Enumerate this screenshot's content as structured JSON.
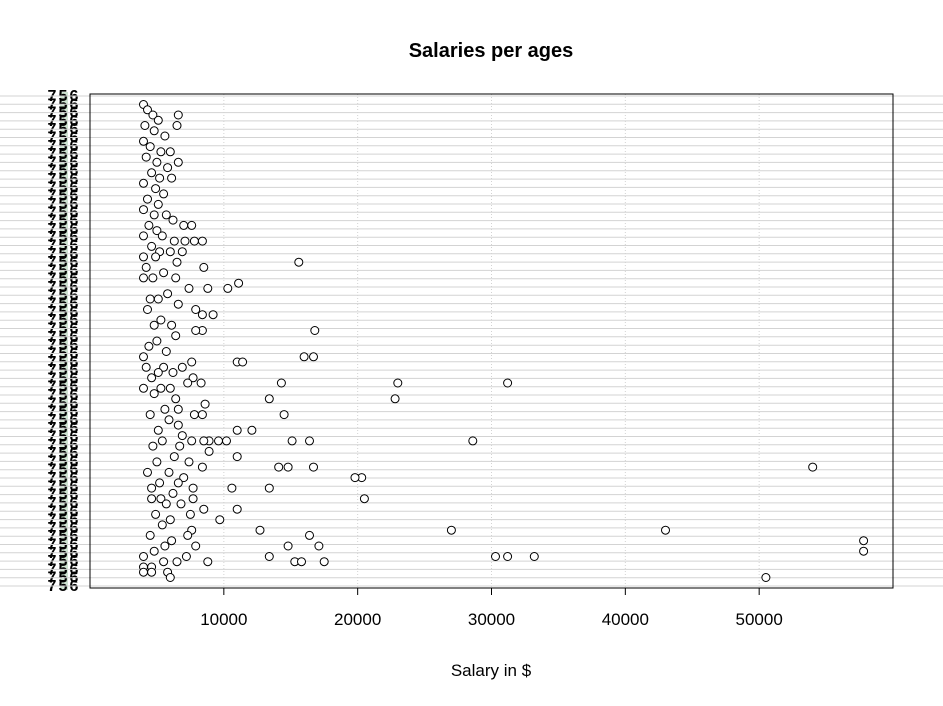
{
  "chart_data": {
    "type": "scatter",
    "title": "Salaries per ages",
    "xlabel": "Salary in $",
    "ylabel": "",
    "xlim": [
      0,
      60000
    ],
    "x_ticks": [
      10000,
      20000,
      30000,
      40000,
      50000
    ],
    "x_tick_labels": [
      "10000",
      "20000",
      "30000",
      "40000",
      "50000"
    ],
    "ylim": [
      18,
      65
    ],
    "y_levels": 60,
    "y_tick_labels_overplotted": [
      "7",
      "5",
      "6"
    ],
    "grid": true,
    "grid_color": "#d3d3d3",
    "point_fill": "#ffffff",
    "point_stroke": "#000000",
    "highlight_band_color": "#cfe3d2",
    "series": [
      {
        "points": [
          {
            "x": 4000,
            "y": 64
          },
          {
            "x": 4300,
            "y": 63.5
          },
          {
            "x": 4700,
            "y": 63
          },
          {
            "x": 5100,
            "y": 62.5
          },
          {
            "x": 6600,
            "y": 63
          },
          {
            "x": 4100,
            "y": 62
          },
          {
            "x": 4800,
            "y": 61.5
          },
          {
            "x": 5600,
            "y": 61
          },
          {
            "x": 6500,
            "y": 62
          },
          {
            "x": 4000,
            "y": 60.5
          },
          {
            "x": 4500,
            "y": 60
          },
          {
            "x": 5300,
            "y": 59.5
          },
          {
            "x": 6000,
            "y": 59.5
          },
          {
            "x": 4200,
            "y": 59
          },
          {
            "x": 5000,
            "y": 58.5
          },
          {
            "x": 5800,
            "y": 58
          },
          {
            "x": 6600,
            "y": 58.5
          },
          {
            "x": 4600,
            "y": 57.5
          },
          {
            "x": 5200,
            "y": 57
          },
          {
            "x": 6100,
            "y": 57
          },
          {
            "x": 4000,
            "y": 56.5
          },
          {
            "x": 4900,
            "y": 56
          },
          {
            "x": 5500,
            "y": 55.5
          },
          {
            "x": 4300,
            "y": 55
          },
          {
            "x": 5100,
            "y": 54.5
          },
          {
            "x": 4000,
            "y": 54
          },
          {
            "x": 4800,
            "y": 53.5
          },
          {
            "x": 5700,
            "y": 53.5
          },
          {
            "x": 6200,
            "y": 53
          },
          {
            "x": 4400,
            "y": 52.5
          },
          {
            "x": 5000,
            "y": 52
          },
          {
            "x": 7000,
            "y": 52.5
          },
          {
            "x": 7600,
            "y": 52.5
          },
          {
            "x": 4000,
            "y": 51.5
          },
          {
            "x": 5400,
            "y": 51.5
          },
          {
            "x": 6300,
            "y": 51
          },
          {
            "x": 7100,
            "y": 51
          },
          {
            "x": 7800,
            "y": 51
          },
          {
            "x": 8400,
            "y": 51
          },
          {
            "x": 4600,
            "y": 50.5
          },
          {
            "x": 5200,
            "y": 50
          },
          {
            "x": 6000,
            "y": 50
          },
          {
            "x": 6900,
            "y": 50
          },
          {
            "x": 4000,
            "y": 49.5
          },
          {
            "x": 4900,
            "y": 49.5
          },
          {
            "x": 6500,
            "y": 49
          },
          {
            "x": 15600,
            "y": 49
          },
          {
            "x": 8500,
            "y": 48.5
          },
          {
            "x": 4200,
            "y": 48.5
          },
          {
            "x": 5500,
            "y": 48
          },
          {
            "x": 4000,
            "y": 47.5
          },
          {
            "x": 4700,
            "y": 47.5
          },
          {
            "x": 6400,
            "y": 47.5
          },
          {
            "x": 11100,
            "y": 47
          },
          {
            "x": 10300,
            "y": 46.5
          },
          {
            "x": 8800,
            "y": 46.5
          },
          {
            "x": 7400,
            "y": 46.5
          },
          {
            "x": 5800,
            "y": 46
          },
          {
            "x": 4500,
            "y": 45.5
          },
          {
            "x": 5100,
            "y": 45.5
          },
          {
            "x": 6600,
            "y": 45
          },
          {
            "x": 4300,
            "y": 44.5
          },
          {
            "x": 7900,
            "y": 44.5
          },
          {
            "x": 9200,
            "y": 44
          },
          {
            "x": 8400,
            "y": 44
          },
          {
            "x": 5300,
            "y": 43.5
          },
          {
            "x": 4800,
            "y": 43
          },
          {
            "x": 6100,
            "y": 43
          },
          {
            "x": 16800,
            "y": 42.5
          },
          {
            "x": 8400,
            "y": 42.5
          },
          {
            "x": 7900,
            "y": 42.5
          },
          {
            "x": 6400,
            "y": 42
          },
          {
            "x": 5000,
            "y": 41.5
          },
          {
            "x": 4400,
            "y": 41
          },
          {
            "x": 5700,
            "y": 40.5
          },
          {
            "x": 16000,
            "y": 40
          },
          {
            "x": 16700,
            "y": 40
          },
          {
            "x": 4000,
            "y": 40
          },
          {
            "x": 11000,
            "y": 39.5
          },
          {
            "x": 11400,
            "y": 39.5
          },
          {
            "x": 7600,
            "y": 39.5
          },
          {
            "x": 4200,
            "y": 39
          },
          {
            "x": 5500,
            "y": 39
          },
          {
            "x": 6900,
            "y": 39
          },
          {
            "x": 5100,
            "y": 38.5
          },
          {
            "x": 6200,
            "y": 38.5
          },
          {
            "x": 7700,
            "y": 38
          },
          {
            "x": 4600,
            "y": 38
          },
          {
            "x": 14300,
            "y": 37.5
          },
          {
            "x": 23000,
            "y": 37.5
          },
          {
            "x": 31200,
            "y": 37.5
          },
          {
            "x": 8300,
            "y": 37.5
          },
          {
            "x": 7300,
            "y": 37.5
          },
          {
            "x": 6000,
            "y": 37
          },
          {
            "x": 5300,
            "y": 37
          },
          {
            "x": 4000,
            "y": 37
          },
          {
            "x": 4800,
            "y": 36.5
          },
          {
            "x": 6400,
            "y": 36
          },
          {
            "x": 13400,
            "y": 36
          },
          {
            "x": 22800,
            "y": 36
          },
          {
            "x": 8600,
            "y": 35.5
          },
          {
            "x": 5600,
            "y": 35
          },
          {
            "x": 6600,
            "y": 35
          },
          {
            "x": 4500,
            "y": 34.5
          },
          {
            "x": 7800,
            "y": 34.5
          },
          {
            "x": 8400,
            "y": 34.5
          },
          {
            "x": 14500,
            "y": 34.5
          },
          {
            "x": 5900,
            "y": 34
          },
          {
            "x": 6600,
            "y": 33.5
          },
          {
            "x": 5100,
            "y": 33
          },
          {
            "x": 11000,
            "y": 33
          },
          {
            "x": 12100,
            "y": 33
          },
          {
            "x": 6900,
            "y": 32.5
          },
          {
            "x": 5400,
            "y": 32
          },
          {
            "x": 16400,
            "y": 32
          },
          {
            "x": 28600,
            "y": 32
          },
          {
            "x": 15100,
            "y": 32
          },
          {
            "x": 10200,
            "y": 32
          },
          {
            "x": 9600,
            "y": 32
          },
          {
            "x": 8900,
            "y": 32
          },
          {
            "x": 8500,
            "y": 32
          },
          {
            "x": 7600,
            "y": 32
          },
          {
            "x": 6700,
            "y": 31.5
          },
          {
            "x": 4700,
            "y": 31.5
          },
          {
            "x": 8900,
            "y": 31
          },
          {
            "x": 11000,
            "y": 30.5
          },
          {
            "x": 6300,
            "y": 30.5
          },
          {
            "x": 5000,
            "y": 30
          },
          {
            "x": 7400,
            "y": 30
          },
          {
            "x": 54000,
            "y": 29.5
          },
          {
            "x": 16700,
            "y": 29.5
          },
          {
            "x": 14800,
            "y": 29.5
          },
          {
            "x": 14100,
            "y": 29.5
          },
          {
            "x": 8400,
            "y": 29.5
          },
          {
            "x": 4300,
            "y": 29
          },
          {
            "x": 5900,
            "y": 29
          },
          {
            "x": 7000,
            "y": 28.5
          },
          {
            "x": 20300,
            "y": 28.5
          },
          {
            "x": 19800,
            "y": 28.5
          },
          {
            "x": 5200,
            "y": 28
          },
          {
            "x": 6600,
            "y": 28
          },
          {
            "x": 4600,
            "y": 27.5
          },
          {
            "x": 10600,
            "y": 27.5
          },
          {
            "x": 13400,
            "y": 27.5
          },
          {
            "x": 7700,
            "y": 27.5
          },
          {
            "x": 6200,
            "y": 27
          },
          {
            "x": 5300,
            "y": 26.5
          },
          {
            "x": 4600,
            "y": 26.5
          },
          {
            "x": 20500,
            "y": 26.5
          },
          {
            "x": 7700,
            "y": 26.5
          },
          {
            "x": 5700,
            "y": 26
          },
          {
            "x": 6800,
            "y": 26
          },
          {
            "x": 11000,
            "y": 25.5
          },
          {
            "x": 8500,
            "y": 25.5
          },
          {
            "x": 4900,
            "y": 25
          },
          {
            "x": 7500,
            "y": 25
          },
          {
            "x": 9700,
            "y": 24.5
          },
          {
            "x": 6000,
            "y": 24.5
          },
          {
            "x": 5400,
            "y": 24
          },
          {
            "x": 12700,
            "y": 23.5
          },
          {
            "x": 27000,
            "y": 23.5
          },
          {
            "x": 43000,
            "y": 23.5
          },
          {
            "x": 7600,
            "y": 23.5
          },
          {
            "x": 4500,
            "y": 23
          },
          {
            "x": 16400,
            "y": 23
          },
          {
            "x": 7300,
            "y": 23
          },
          {
            "x": 6100,
            "y": 22.5
          },
          {
            "x": 57800,
            "y": 22.5
          },
          {
            "x": 17100,
            "y": 22
          },
          {
            "x": 14800,
            "y": 22
          },
          {
            "x": 7900,
            "y": 22
          },
          {
            "x": 5600,
            "y": 22
          },
          {
            "x": 4800,
            "y": 21.5
          },
          {
            "x": 57800,
            "y": 21.5
          },
          {
            "x": 13400,
            "y": 21
          },
          {
            "x": 30300,
            "y": 21
          },
          {
            "x": 31200,
            "y": 21
          },
          {
            "x": 33200,
            "y": 21
          },
          {
            "x": 7200,
            "y": 21
          },
          {
            "x": 4000,
            "y": 21
          },
          {
            "x": 15300,
            "y": 20.5
          },
          {
            "x": 15800,
            "y": 20.5
          },
          {
            "x": 17500,
            "y": 20.5
          },
          {
            "x": 8800,
            "y": 20.5
          },
          {
            "x": 6500,
            "y": 20.5
          },
          {
            "x": 5500,
            "y": 20.5
          },
          {
            "x": 4600,
            "y": 20
          },
          {
            "x": 4000,
            "y": 20
          },
          {
            "x": 5800,
            "y": 19.5
          },
          {
            "x": 4600,
            "y": 19.5
          },
          {
            "x": 4000,
            "y": 19.5
          },
          {
            "x": 50500,
            "y": 19
          },
          {
            "x": 6000,
            "y": 19
          }
        ]
      }
    ]
  }
}
